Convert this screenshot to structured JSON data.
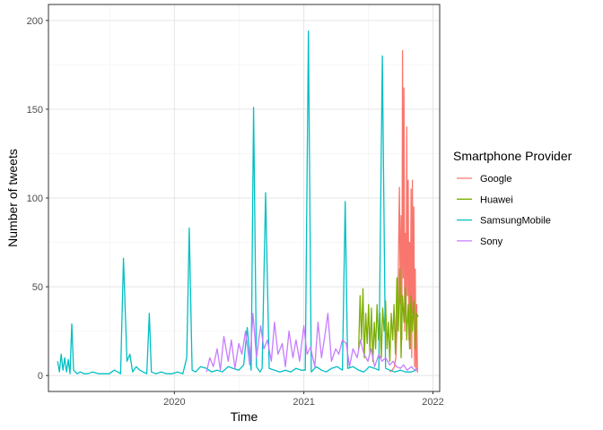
{
  "chart_data": {
    "type": "line",
    "title": "",
    "xlabel": "Time",
    "ylabel": "Number of tweets",
    "xlim": [
      "2019-01-10",
      "2022-01-20"
    ],
    "ylim": [
      -9,
      209
    ],
    "xticks": [
      "2020-01-01",
      "2021-01-01",
      "2022-01-01"
    ],
    "xtick_labels": [
      "2020",
      "2021",
      "2022"
    ],
    "yticks": [
      0,
      50,
      100,
      150,
      200
    ],
    "ytick_labels": [
      "0",
      "50",
      "100",
      "150",
      "200"
    ],
    "grid": true,
    "legend": {
      "title": "Smartphone Provider",
      "position": "right"
    },
    "series": [
      {
        "name": "Google",
        "color": "#F8766D",
        "x": [
          "2021-09-01",
          "2021-09-08",
          "2021-09-14",
          "2021-09-18",
          "2021-09-22",
          "2021-09-25",
          "2021-09-28",
          "2021-10-01",
          "2021-10-03",
          "2021-10-05",
          "2021-10-07",
          "2021-10-09",
          "2021-10-11",
          "2021-10-13",
          "2021-10-15",
          "2021-10-17",
          "2021-10-19",
          "2021-10-21",
          "2021-10-23",
          "2021-10-25",
          "2021-10-27",
          "2021-10-29",
          "2021-10-31",
          "2021-11-02",
          "2021-11-04",
          "2021-11-06",
          "2021-11-08",
          "2021-11-10",
          "2021-11-12",
          "2021-11-14",
          "2021-11-16",
          "2021-11-18",
          "2021-11-20"
        ],
        "y": [
          2,
          3,
          5,
          10,
          30,
          60,
          106,
          40,
          90,
          20,
          183,
          55,
          162,
          25,
          80,
          30,
          140,
          45,
          110,
          20,
          75,
          15,
          105,
          10,
          110,
          35,
          95,
          5,
          60,
          3,
          40,
          2,
          2
        ]
      },
      {
        "name": "Huawei",
        "color": "#7CAE00",
        "x": [
          "2021-06-05",
          "2021-06-09",
          "2021-06-13",
          "2021-06-17",
          "2021-06-21",
          "2021-06-25",
          "2021-06-29",
          "2021-07-03",
          "2021-07-07",
          "2021-07-11",
          "2021-07-15",
          "2021-07-19",
          "2021-07-23",
          "2021-07-27",
          "2021-07-31",
          "2021-08-04",
          "2021-08-08",
          "2021-08-12",
          "2021-08-16",
          "2021-08-20",
          "2021-08-24",
          "2021-08-28",
          "2021-09-01",
          "2021-09-05",
          "2021-09-09",
          "2021-09-13",
          "2021-09-17",
          "2021-09-21",
          "2021-09-25",
          "2021-09-29",
          "2021-10-03",
          "2021-10-07",
          "2021-10-11",
          "2021-10-15",
          "2021-10-19",
          "2021-10-23",
          "2021-10-27",
          "2021-10-31",
          "2021-11-04",
          "2021-11-08",
          "2021-11-12",
          "2021-11-16",
          "2021-11-20"
        ],
        "y": [
          15,
          45,
          20,
          49,
          10,
          35,
          18,
          40,
          12,
          38,
          8,
          30,
          15,
          40,
          20,
          35,
          10,
          38,
          25,
          42,
          15,
          30,
          8,
          35,
          20,
          40,
          12,
          55,
          25,
          60,
          10,
          45,
          30,
          50,
          20,
          40,
          15,
          45,
          25,
          42,
          15,
          35,
          33
        ]
      },
      {
        "name": "SamsungMobile",
        "color": "#00BFC4",
        "x": [
          "2019-02-05",
          "2019-02-10",
          "2019-02-15",
          "2019-02-20",
          "2019-02-25",
          "2019-03-02",
          "2019-03-07",
          "2019-03-12",
          "2019-03-17",
          "2019-03-22",
          "2019-03-27",
          "2019-04-01",
          "2019-04-10",
          "2019-04-20",
          "2019-05-01",
          "2019-05-15",
          "2019-06-01",
          "2019-06-15",
          "2019-07-01",
          "2019-07-15",
          "2019-07-25",
          "2019-08-02",
          "2019-08-10",
          "2019-08-20",
          "2019-08-28",
          "2019-09-05",
          "2019-09-15",
          "2019-09-25",
          "2019-10-05",
          "2019-10-15",
          "2019-10-22",
          "2019-10-28",
          "2019-11-10",
          "2019-11-25",
          "2019-12-10",
          "2019-12-25",
          "2020-01-10",
          "2020-01-25",
          "2020-02-05",
          "2020-02-12",
          "2020-02-20",
          "2020-03-01",
          "2020-03-15",
          "2020-04-01",
          "2020-04-15",
          "2020-05-01",
          "2020-05-15",
          "2020-06-01",
          "2020-06-15",
          "2020-07-01",
          "2020-07-15",
          "2020-07-25",
          "2020-08-05",
          "2020-08-12",
          "2020-08-20",
          "2020-08-30",
          "2020-09-05",
          "2020-09-15",
          "2020-09-25",
          "2020-10-10",
          "2020-10-25",
          "2020-11-10",
          "2020-11-25",
          "2020-12-10",
          "2020-12-25",
          "2021-01-05",
          "2021-01-14",
          "2021-01-22",
          "2021-02-05",
          "2021-02-20",
          "2021-03-05",
          "2021-03-20",
          "2021-04-05",
          "2021-04-20",
          "2021-04-28",
          "2021-05-05",
          "2021-05-20",
          "2021-06-05",
          "2021-06-20",
          "2021-07-05",
          "2021-07-20",
          "2021-08-01",
          "2021-08-11",
          "2021-08-20",
          "2021-09-01",
          "2021-09-15",
          "2021-10-01",
          "2021-10-15",
          "2021-11-01",
          "2021-11-15"
        ],
        "y": [
          8,
          2,
          12,
          3,
          10,
          2,
          9,
          1,
          29,
          3,
          2,
          1,
          2,
          1,
          1,
          2,
          1,
          1,
          1,
          3,
          2,
          1,
          66,
          8,
          12,
          2,
          5,
          3,
          2,
          1,
          35,
          2,
          1,
          2,
          1,
          1,
          2,
          1,
          10,
          83,
          3,
          2,
          5,
          4,
          2,
          3,
          2,
          5,
          4,
          3,
          6,
          27,
          3,
          151,
          5,
          2,
          4,
          103,
          4,
          3,
          2,
          3,
          2,
          4,
          3,
          3,
          194,
          2,
          5,
          3,
          2,
          4,
          5,
          3,
          98,
          4,
          5,
          3,
          2,
          5,
          4,
          3,
          180,
          4,
          3,
          2,
          3,
          2,
          2,
          3
        ]
      },
      {
        "name": "Sony",
        "color": "#C77CFF",
        "x": [
          "2020-04-01",
          "2020-04-10",
          "2020-04-20",
          "2020-05-01",
          "2020-05-10",
          "2020-05-20",
          "2020-06-01",
          "2020-06-10",
          "2020-06-20",
          "2020-07-01",
          "2020-07-10",
          "2020-07-20",
          "2020-08-01",
          "2020-08-10",
          "2020-08-20",
          "2020-09-01",
          "2020-09-10",
          "2020-09-20",
          "2020-10-01",
          "2020-10-10",
          "2020-10-20",
          "2020-11-01",
          "2020-11-10",
          "2020-11-20",
          "2020-12-01",
          "2020-12-10",
          "2020-12-20",
          "2021-01-01",
          "2021-01-10",
          "2021-01-20",
          "2021-02-01",
          "2021-02-10",
          "2021-02-20",
          "2021-03-01",
          "2021-03-10",
          "2021-03-20",
          "2021-04-01",
          "2021-04-10",
          "2021-04-20",
          "2021-05-01",
          "2021-05-10",
          "2021-05-20",
          "2021-06-01",
          "2021-06-10",
          "2021-06-20",
          "2021-07-01",
          "2021-07-10",
          "2021-07-20",
          "2021-08-01",
          "2021-08-10",
          "2021-08-20",
          "2021-09-01",
          "2021-09-10",
          "2021-09-20",
          "2021-10-01",
          "2021-10-10",
          "2021-10-20",
          "2021-11-01",
          "2021-11-10",
          "2021-11-20"
        ],
        "y": [
          2,
          10,
          5,
          15,
          3,
          22,
          8,
          20,
          4,
          18,
          12,
          25,
          6,
          35,
          10,
          28,
          15,
          20,
          8,
          30,
          12,
          18,
          5,
          25,
          10,
          20,
          8,
          28,
          12,
          16,
          5,
          30,
          10,
          22,
          35,
          8,
          15,
          12,
          20,
          18,
          5,
          15,
          10,
          20,
          12,
          8,
          15,
          5,
          12,
          8,
          10,
          6,
          8,
          5,
          4,
          6,
          3,
          5,
          3,
          4
        ]
      }
    ]
  }
}
